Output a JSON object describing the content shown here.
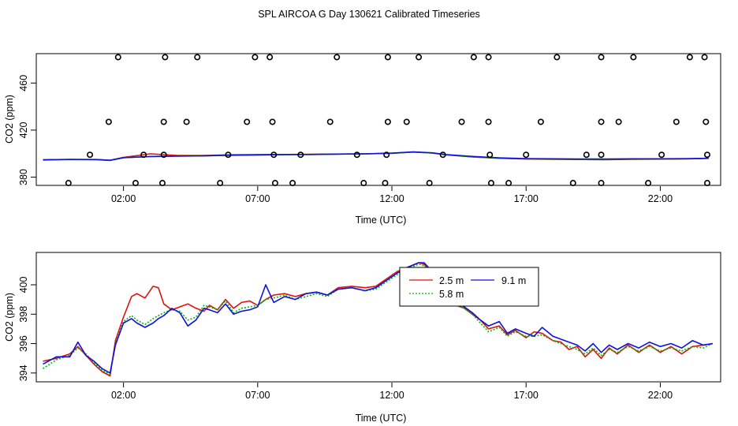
{
  "title": "SPL AIRCOA G  Day 130621  Calibrated Timeseries",
  "colors": {
    "s25": "#dd1111",
    "s58": "#00bb00",
    "s91": "#1111dd",
    "axis": "#000000"
  },
  "chart_data": [
    {
      "type": "scatter",
      "panel": "top",
      "xlabel": "Time (UTC)",
      "ylabel": "CO2 (ppm)",
      "xlim": [
        -1.25,
        24.25
      ],
      "ylim": [
        373,
        485
      ],
      "x_ticks": [
        2,
        7,
        12,
        17,
        22
      ],
      "x_tick_labels": [
        "02:00",
        "07:00",
        "12:00",
        "17:00",
        "22:00"
      ],
      "y_ticks": [
        380,
        420,
        460
      ],
      "y_tick_labels": [
        "380",
        "420",
        "460"
      ],
      "flag_points": {
        "marker": "open-circle",
        "levels": [
          {
            "y": 482,
            "x": [
              1.8,
              3.55,
              4.75,
              6.9,
              7.45,
              9.95,
              11.85,
              13.0,
              15.05,
              15.6,
              18.15,
              19.8,
              21.0,
              23.1,
              23.65
            ]
          },
          {
            "y": 427,
            "x": [
              1.45,
              3.5,
              4.35,
              6.6,
              7.55,
              9.7,
              11.85,
              12.55,
              14.6,
              15.6,
              17.55,
              19.8,
              20.45,
              22.6,
              23.7
            ]
          },
          {
            "y": 399,
            "x": [
              0.75,
              2.75,
              3.5,
              5.9,
              7.6,
              8.6,
              10.7,
              11.8,
              13.9,
              15.65,
              17.0,
              19.25,
              19.8,
              22.05,
              23.75
            ]
          },
          {
            "y": 375,
            "x": [
              -0.05,
              2.45,
              3.45,
              5.6,
              7.65,
              8.3,
              10.95,
              11.75,
              13.4,
              15.7,
              16.35,
              18.75,
              19.8,
              21.55,
              23.75
            ]
          }
        ]
      },
      "series": [
        {
          "name": "2.5 m",
          "color": "#dd1111",
          "x": [
            -1,
            0,
            1,
            1.5,
            2,
            3,
            4,
            5,
            6,
            7,
            8,
            9,
            10,
            11,
            12,
            12.8,
            13.5,
            14,
            15,
            16,
            17,
            18,
            19,
            20,
            21,
            22,
            23,
            23.8
          ],
          "y": [
            394.8,
            395.0,
            394.9,
            394.3,
            396.8,
            399.8,
            398.5,
            398.5,
            399.0,
            399.2,
            399.3,
            399.4,
            399.6,
            399.8,
            400.3,
            401.4,
            400.5,
            399.0,
            397.2,
            396.0,
            395.4,
            395.2,
            395.0,
            394.8,
            395.2,
            395.3,
            395.5,
            396.0
          ]
        },
        {
          "name": "5.8 m",
          "color": "#00bb00",
          "x": [
            -1,
            0,
            1,
            1.5,
            2,
            3,
            4,
            5,
            6,
            7,
            8,
            9,
            10,
            11,
            12,
            12.8,
            13.5,
            14,
            15,
            16,
            17,
            18,
            19,
            20,
            21,
            22,
            23,
            23.8
          ],
          "y": [
            394.5,
            395.0,
            394.8,
            394.2,
            396.5,
            397.6,
            398.0,
            398.2,
            398.7,
            399.0,
            399.2,
            399.3,
            399.6,
            399.8,
            400.3,
            401.3,
            400.5,
            399.0,
            397.3,
            396.2,
            395.6,
            395.4,
            395.2,
            395.2,
            395.4,
            395.5,
            395.6,
            396.0
          ]
        },
        {
          "name": "9.1 m",
          "color": "#1111dd",
          "x": [
            -1,
            0,
            1,
            1.5,
            2,
            3,
            4,
            5,
            6,
            7,
            8,
            9,
            10,
            11,
            12,
            12.8,
            13.5,
            14,
            15,
            16,
            17,
            18,
            19,
            20,
            21,
            22,
            23,
            23.8
          ],
          "y": [
            394.7,
            395.1,
            395.0,
            394.3,
            396.6,
            397.5,
            397.9,
            398.1,
            398.6,
            398.9,
            399.2,
            399.3,
            399.6,
            399.8,
            400.4,
            401.5,
            400.7,
            399.2,
            397.6,
            396.4,
            395.8,
            395.6,
            395.4,
            395.4,
            395.6,
            395.6,
            395.8,
            396.0
          ]
        }
      ]
    },
    {
      "type": "line",
      "panel": "bottom",
      "xlabel": "Time (UTC)",
      "ylabel": "CO2 (ppm)",
      "xlim": [
        -1.25,
        24.25
      ],
      "ylim": [
        393.4,
        402.2
      ],
      "x_ticks": [
        2,
        7,
        12,
        17,
        22
      ],
      "x_tick_labels": [
        "02:00",
        "07:00",
        "12:00",
        "17:00",
        "22:00"
      ],
      "y_ticks": [
        394,
        396,
        398,
        400
      ],
      "y_tick_labels": [
        "394",
        "396",
        "398",
        "400"
      ],
      "legend": {
        "placement": "top-right-of-center",
        "entries": [
          "2.5 m",
          "5.8 m",
          "9.1 m"
        ]
      },
      "series": [
        {
          "name": "2.5 m",
          "color": "#dd1111",
          "dash": "solid",
          "x": [
            -1,
            -0.5,
            0,
            0.3,
            0.6,
            0.9,
            1.2,
            1.5,
            1.7,
            2.0,
            2.3,
            2.5,
            2.8,
            3.1,
            3.3,
            3.5,
            3.8,
            4.1,
            4.4,
            4.7,
            5.0,
            5.2,
            5.5,
            5.8,
            6.1,
            6.4,
            6.7,
            7.0,
            7.3,
            7.6,
            8.0,
            8.4,
            8.8,
            9.2,
            9.6,
            10.0,
            10.5,
            11.0,
            11.4,
            11.8,
            12.2,
            12.6,
            13.0,
            13.2,
            13.5,
            13.8,
            14.1,
            14.4,
            14.7,
            15.0,
            15.3,
            15.6,
            16.0,
            16.3,
            16.6,
            17.0,
            17.3,
            17.6,
            18.0,
            18.3,
            18.6,
            18.9,
            19.2,
            19.5,
            19.8,
            20.1,
            20.4,
            20.8,
            21.2,
            21.6,
            22.0,
            22.4,
            22.8,
            23.2,
            23.6,
            23.95
          ],
          "y": [
            394.8,
            395.0,
            395.3,
            395.8,
            395.2,
            394.6,
            394.1,
            393.8,
            396.2,
            397.8,
            399.2,
            399.4,
            399.1,
            399.9,
            399.8,
            398.7,
            398.3,
            398.5,
            398.7,
            398.4,
            398.2,
            398.6,
            398.3,
            399.0,
            398.4,
            398.8,
            398.9,
            398.6,
            399.0,
            399.3,
            399.4,
            399.2,
            399.4,
            399.5,
            399.3,
            399.8,
            399.9,
            399.8,
            399.9,
            400.4,
            400.9,
            401.2,
            401.5,
            401.4,
            400.7,
            399.5,
            399.0,
            398.6,
            398.4,
            398.0,
            397.6,
            397.0,
            397.2,
            396.6,
            396.9,
            396.4,
            396.8,
            396.7,
            396.2,
            396.1,
            395.6,
            395.8,
            395.1,
            395.6,
            395.0,
            395.7,
            395.3,
            395.9,
            395.4,
            395.9,
            395.4,
            395.8,
            395.3,
            395.8,
            395.9,
            396.0
          ]
        },
        {
          "name": "5.8 m",
          "color": "#00bb00",
          "dash": "dotted",
          "x": [
            -1,
            -0.5,
            0,
            0.3,
            0.6,
            0.9,
            1.2,
            1.5,
            1.7,
            2.0,
            2.3,
            2.5,
            2.8,
            3.1,
            3.3,
            3.5,
            3.8,
            4.1,
            4.4,
            4.7,
            5.0,
            5.2,
            5.5,
            5.8,
            6.1,
            6.4,
            6.7,
            7.0,
            7.3,
            7.6,
            8.0,
            8.4,
            8.8,
            9.2,
            9.6,
            10.0,
            10.5,
            11.0,
            11.4,
            11.8,
            12.2,
            12.6,
            13.0,
            13.2,
            13.5,
            13.8,
            14.1,
            14.4,
            14.7,
            15.0,
            15.3,
            15.6,
            16.0,
            16.3,
            16.6,
            17.0,
            17.3,
            17.6,
            18.0,
            18.3,
            18.6,
            18.9,
            19.2,
            19.5,
            19.8,
            20.1,
            20.4,
            20.8,
            21.2,
            21.6,
            22.0,
            22.4,
            22.8,
            23.2,
            23.6,
            23.95
          ],
          "y": [
            394.3,
            394.9,
            395.2,
            395.7,
            395.3,
            394.7,
            394.2,
            393.9,
            396.0,
            397.5,
            397.9,
            397.6,
            397.3,
            397.7,
            397.9,
            398.1,
            398.3,
            398.2,
            397.6,
            397.8,
            398.6,
            398.5,
            398.3,
            398.9,
            398.1,
            398.4,
            398.5,
            398.6,
            399.0,
            399.1,
            399.3,
            399.0,
            399.2,
            399.4,
            399.2,
            399.7,
            399.8,
            399.6,
            399.7,
            400.2,
            400.7,
            401.1,
            401.4,
            401.3,
            400.8,
            399.7,
            399.1,
            398.7,
            398.4,
            398.0,
            397.4,
            396.8,
            397.1,
            396.5,
            396.8,
            396.5,
            396.5,
            396.6,
            396.2,
            396.0,
            395.8,
            395.6,
            395.3,
            395.7,
            395.2,
            395.6,
            395.4,
            395.8,
            395.5,
            395.8,
            395.5,
            395.7,
            395.5,
            395.8,
            395.7,
            396.0
          ]
        },
        {
          "name": "9.1 m",
          "color": "#1111dd",
          "dash": "solid",
          "x": [
            -1,
            -0.5,
            0,
            0.3,
            0.6,
            0.9,
            1.2,
            1.5,
            1.7,
            2.0,
            2.3,
            2.5,
            2.8,
            3.1,
            3.3,
            3.5,
            3.8,
            4.1,
            4.4,
            4.7,
            5.0,
            5.2,
            5.5,
            5.8,
            6.1,
            6.4,
            6.7,
            7.0,
            7.3,
            7.6,
            8.0,
            8.4,
            8.8,
            9.2,
            9.6,
            10.0,
            10.5,
            11.0,
            11.4,
            11.8,
            12.2,
            12.6,
            13.0,
            13.2,
            13.5,
            13.8,
            14.1,
            14.4,
            14.7,
            15.0,
            15.3,
            15.6,
            16.0,
            16.3,
            16.6,
            17.0,
            17.3,
            17.6,
            18.0,
            18.3,
            18.6,
            18.9,
            19.2,
            19.5,
            19.8,
            20.1,
            20.4,
            20.8,
            21.2,
            21.6,
            22.0,
            22.4,
            22.8,
            23.2,
            23.6,
            23.95
          ],
          "y": [
            394.6,
            395.1,
            395.1,
            396.1,
            395.2,
            394.8,
            394.3,
            394.0,
            395.9,
            397.4,
            397.7,
            397.4,
            397.1,
            397.4,
            397.7,
            397.9,
            398.4,
            398.1,
            397.2,
            397.6,
            398.4,
            398.3,
            398.1,
            398.7,
            398.0,
            398.2,
            398.3,
            398.5,
            400.0,
            398.8,
            399.2,
            399.0,
            399.4,
            399.5,
            399.3,
            399.7,
            399.8,
            399.6,
            399.8,
            400.3,
            400.8,
            401.2,
            401.5,
            401.5,
            400.9,
            399.9,
            399.2,
            398.8,
            398.5,
            398.1,
            397.6,
            397.2,
            397.5,
            396.7,
            397.0,
            396.7,
            396.5,
            397.1,
            396.5,
            396.3,
            396.1,
            395.9,
            395.5,
            396.0,
            395.4,
            395.9,
            395.6,
            396.0,
            395.7,
            396.1,
            395.8,
            396.0,
            395.7,
            396.2,
            395.9,
            396.0
          ]
        }
      ]
    }
  ]
}
